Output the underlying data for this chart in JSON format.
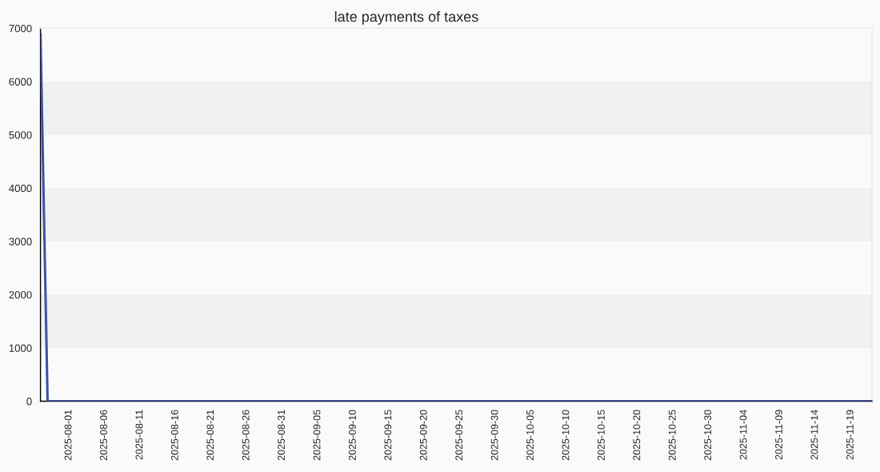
{
  "chart_data": {
    "type": "line",
    "title": "late payments of taxes",
    "x": [
      "2025-07-28",
      "2025-07-29",
      "2025-11-22"
    ],
    "series": [
      {
        "color": "#3f51a5",
        "values": [
          6900,
          0,
          0
        ]
      }
    ],
    "xlim": [
      "2025-07-28",
      "2025-11-22"
    ],
    "xticks": [
      "2025-08-01",
      "2025-08-06",
      "2025-08-11",
      "2025-08-16",
      "2025-08-21",
      "2025-08-26",
      "2025-08-31",
      "2025-09-05",
      "2025-09-10",
      "2025-09-15",
      "2025-09-20",
      "2025-09-25",
      "2025-09-30",
      "2025-10-05",
      "2025-10-10",
      "2025-10-15",
      "2025-10-20",
      "2025-10-25",
      "2025-10-30",
      "2025-11-04",
      "2025-11-09",
      "2025-11-14",
      "2025-11-19"
    ],
    "ylim": [
      0,
      7000
    ],
    "yticks": [
      0,
      1000,
      2000,
      3000,
      4000,
      5000,
      6000,
      7000
    ],
    "bands": [
      {
        "axis": "y",
        "from": 1000,
        "to": 2000,
        "color": "#f0f0f0"
      },
      {
        "axis": "y",
        "from": 3000,
        "to": 4000,
        "color": "#f0f0f0"
      },
      {
        "axis": "y",
        "from": 5000,
        "to": 6000,
        "color": "#f0f0f0"
      }
    ],
    "grid": false,
    "marker": "none",
    "line_style": "solid"
  }
}
